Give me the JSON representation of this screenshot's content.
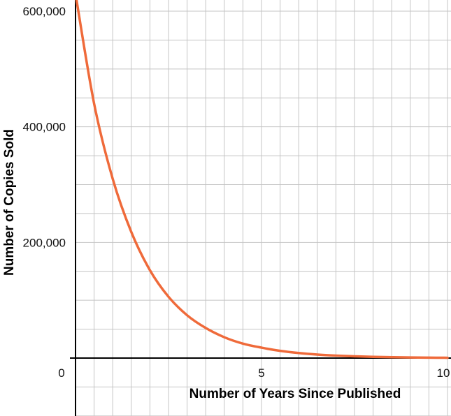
{
  "chart_data": {
    "type": "line",
    "title": "",
    "xlabel": "Number of Years Since Published",
    "ylabel": "Number of Copies Sold",
    "xlim": [
      0,
      10
    ],
    "ylim": [
      0,
      600000
    ],
    "x_ticks": [
      {
        "value": 0,
        "label": "0"
      },
      {
        "value": 5,
        "label": "5"
      },
      {
        "value": 10,
        "label": "10"
      }
    ],
    "y_ticks": [
      {
        "value": 200000,
        "label": "200,000"
      },
      {
        "value": 400000,
        "label": "400,000"
      },
      {
        "value": 600000,
        "label": "600,000"
      }
    ],
    "grid": true,
    "legend": "none",
    "series": [
      {
        "color": "#ef6a3a",
        "x": [
          0,
          0.5,
          1,
          1.5,
          2,
          2.5,
          3,
          3.5,
          4,
          4.5,
          5,
          5.5,
          6,
          6.5,
          7,
          7.5,
          8,
          8.5,
          9,
          9.5,
          10
        ],
        "y": [
          630000,
          440000,
          310000,
          218000,
          152000,
          106000,
          74000,
          52000,
          36000,
          25000,
          18000,
          12500,
          8700,
          6100,
          4300,
          3000,
          2100,
          1500,
          1000,
          700,
          500
        ]
      }
    ]
  }
}
